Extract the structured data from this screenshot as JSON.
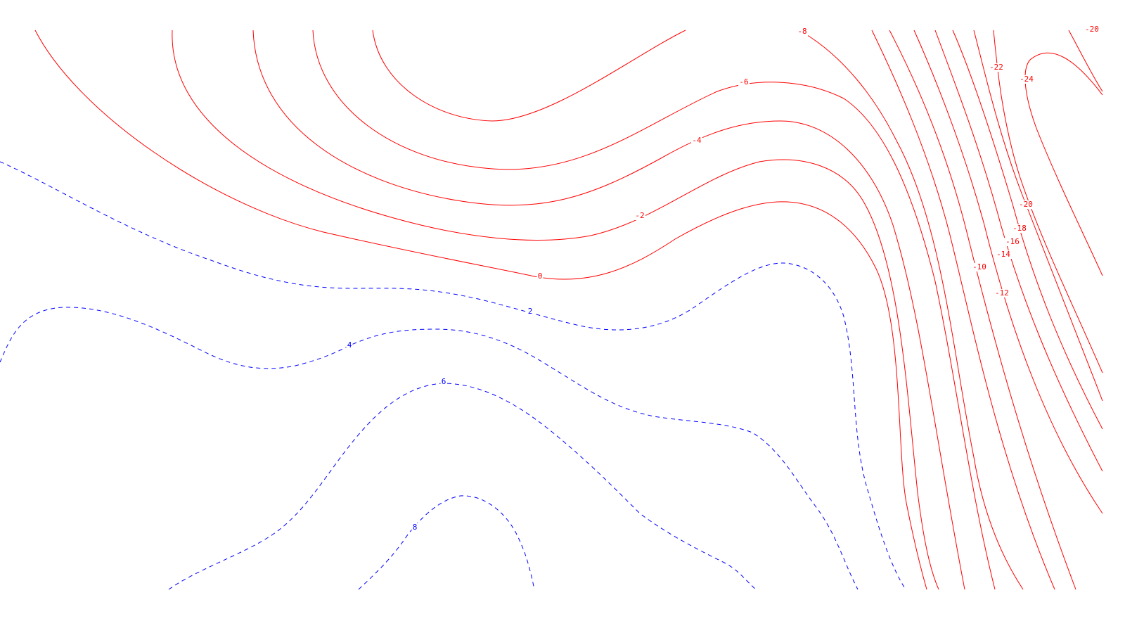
{
  "chart_data": {
    "type": "contour",
    "title": "",
    "xlabel": "",
    "ylabel": "",
    "colors": {
      "positive": "#0000ff",
      "negative": "#ff0000"
    },
    "positive_style": "dashed",
    "negative_style": "solid",
    "contours": [
      {
        "level": -24,
        "label": "-24"
      },
      {
        "level": -22,
        "label": "-22"
      },
      {
        "level": -20,
        "label": "-20"
      },
      {
        "level": -20,
        "label": "-20"
      },
      {
        "level": -18,
        "label": "-18"
      },
      {
        "level": -16,
        "label": "-16"
      },
      {
        "level": -14,
        "label": "-14"
      },
      {
        "level": -12,
        "label": "-12"
      },
      {
        "level": -10,
        "label": "-10"
      },
      {
        "level": -8,
        "label": "-8"
      },
      {
        "level": -6,
        "label": "-6"
      },
      {
        "level": -4,
        "label": "-4"
      },
      {
        "level": -2,
        "label": "-2"
      },
      {
        "level": 0,
        "label": "0"
      },
      {
        "level": 2,
        "label": "2"
      },
      {
        "level": 4,
        "label": "4"
      },
      {
        "level": 6,
        "label": "6"
      },
      {
        "level": 8,
        "label": "8"
      }
    ]
  }
}
